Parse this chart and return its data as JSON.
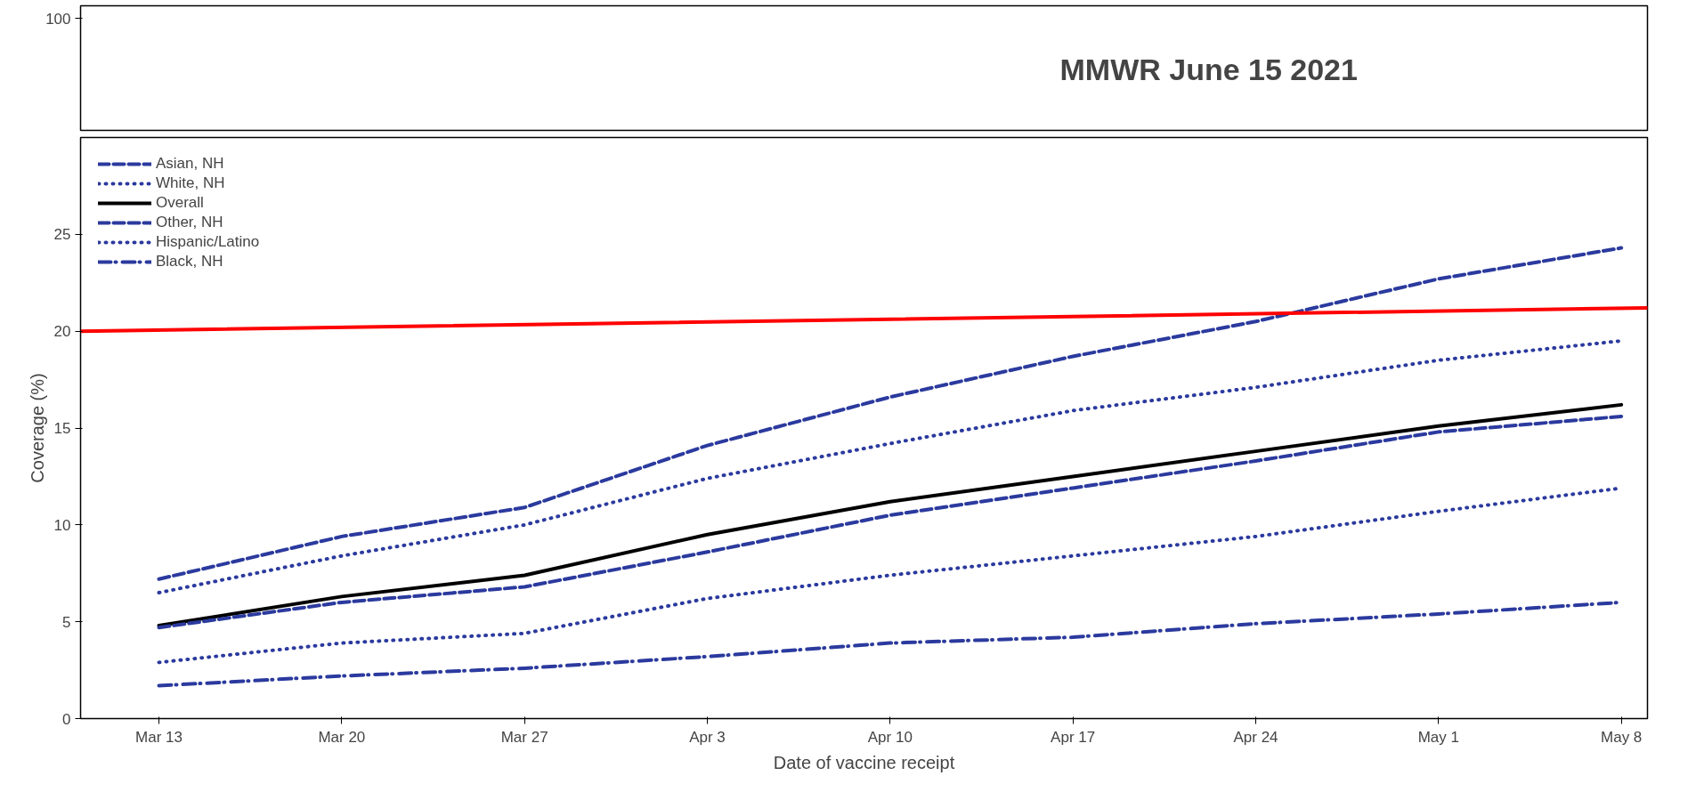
{
  "chart_data": [
    {
      "type": "other",
      "annotations": [
        "100",
        "MMWR June 15 2021"
      ]
    },
    {
      "type": "line",
      "xlabel": "Date of vaccine receipt",
      "ylabel": "Coverage (%)",
      "x": [
        "2021-03-13",
        "2021-03-20",
        "2021-03-27",
        "2021-04-03",
        "2021-04-10",
        "2021-04-17",
        "2021-04-24",
        "2021-05-01",
        "2021-05-08"
      ],
      "xlim": [
        "2021-03-10",
        "2021-05-09"
      ],
      "xticks": [
        {
          "value": "2021-03-13",
          "label": "Mar 13"
        },
        {
          "value": "2021-03-20",
          "label": "Mar 20"
        },
        {
          "value": "2021-03-27",
          "label": "Mar 27"
        },
        {
          "value": "2021-04-03",
          "label": "Apr 3"
        },
        {
          "value": "2021-04-10",
          "label": "Apr 10"
        },
        {
          "value": "2021-04-17",
          "label": "Apr 17"
        },
        {
          "value": "2021-04-24",
          "label": "Apr 24"
        },
        {
          "value": "2021-05-01",
          "label": "May 1"
        },
        {
          "value": "2021-05-08",
          "label": "May 8"
        }
      ],
      "ylim": [
        0,
        30
      ],
      "yticks": [
        0,
        5,
        10,
        15,
        20,
        25
      ],
      "grid": false,
      "legend": "top left",
      "marker": "none",
      "series": [
        {
          "name": "Asian, NH",
          "color": "#2b3a9e",
          "line_style": "dashed",
          "values": [
            7.2,
            9.4,
            10.9,
            14.1,
            16.6,
            18.7,
            20.5,
            22.7,
            24.3
          ]
        },
        {
          "name": "White, NH",
          "color": "#2b3a9e",
          "line_style": "dotted",
          "values": [
            6.5,
            8.4,
            10.0,
            12.4,
            14.2,
            15.9,
            17.1,
            18.5,
            19.5
          ]
        },
        {
          "name": "Overall",
          "color": "#000000",
          "line_style": "solid",
          "values": [
            4.8,
            6.3,
            7.4,
            9.5,
            11.2,
            12.5,
            13.8,
            15.1,
            16.2
          ]
        },
        {
          "name": "Other, NH",
          "color": "#2b3a9e",
          "line_style": "dashed",
          "values": [
            4.7,
            6.0,
            6.8,
            8.6,
            10.5,
            11.9,
            13.3,
            14.8,
            15.6
          ]
        },
        {
          "name": "Hispanic/Latino",
          "color": "#2b3a9e",
          "line_style": "dotted",
          "values": [
            2.9,
            3.9,
            4.4,
            6.2,
            7.4,
            8.4,
            9.4,
            10.7,
            11.9
          ]
        },
        {
          "name": "Black, NH",
          "color": "#2b3a9e",
          "line_style": "dashdot",
          "values": [
            1.7,
            2.2,
            2.6,
            3.2,
            3.9,
            4.2,
            4.9,
            5.4,
            6.0
          ]
        },
        {
          "color": "#ff0000",
          "line_style": "solid",
          "x": [
            "2021-03-10",
            "2021-05-09"
          ],
          "values": [
            20.0,
            21.2
          ]
        }
      ]
    }
  ]
}
